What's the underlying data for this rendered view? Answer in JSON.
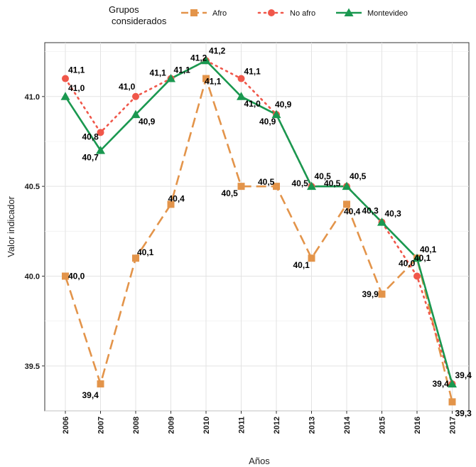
{
  "chart_data": {
    "type": "line",
    "xlabel": "Años",
    "ylabel": "Valor indicador",
    "x": [
      "2006",
      "2007",
      "2008",
      "2009",
      "2010",
      "2011",
      "2012",
      "2013",
      "2014",
      "2015",
      "2016",
      "2017"
    ],
    "ylim": [
      39.25,
      41.3
    ],
    "yticks": [
      39.5,
      40.0,
      40.5,
      41.0
    ],
    "ytick_labels": [
      "39.5",
      "40.0",
      "40.5",
      "41.0"
    ],
    "grid": true,
    "legend": {
      "title_line1": "Grupos",
      "title_line2": "considerados",
      "position": "top"
    },
    "series": [
      {
        "name": "Afro",
        "color": "#E3944A",
        "line_style": "long-dash",
        "marker": "square",
        "values": [
          40.0,
          39.4,
          40.1,
          40.4,
          41.1,
          40.5,
          40.5,
          40.1,
          40.4,
          39.9,
          40.1,
          39.3
        ],
        "labels": [
          "40,0",
          "39,4",
          "40,1",
          "40,4",
          "41,1",
          "40,5",
          "40,5",
          "40,1",
          "40,4",
          "39,9",
          "40,1",
          "39,3"
        ]
      },
      {
        "name": "No afro",
        "color": "#F0574A",
        "line_style": "dotted",
        "marker": "circle",
        "values": [
          41.1,
          40.8,
          41.0,
          41.1,
          41.2,
          41.1,
          40.9,
          40.5,
          40.5,
          40.3,
          40.0,
          39.4
        ],
        "labels": [
          "41,1",
          "40,8",
          "41,0",
          "41,1",
          "41,2",
          "41,1",
          "40,9",
          "40,5",
          "40,5",
          "40,3",
          "40,0",
          "39,4"
        ]
      },
      {
        "name": "Montevideo",
        "color": "#1A9850",
        "line_style": "solid",
        "marker": "triangle",
        "values": [
          41.0,
          40.7,
          40.9,
          41.1,
          41.2,
          41.0,
          40.9,
          40.5,
          40.5,
          40.3,
          40.1,
          39.4
        ],
        "labels": [
          "41,0",
          "40,7",
          "40,9",
          "41,1",
          "41,2",
          "41,0",
          "40,9",
          "40,5",
          "40,5",
          "40,3",
          "40,1",
          "39,4"
        ]
      }
    ]
  }
}
